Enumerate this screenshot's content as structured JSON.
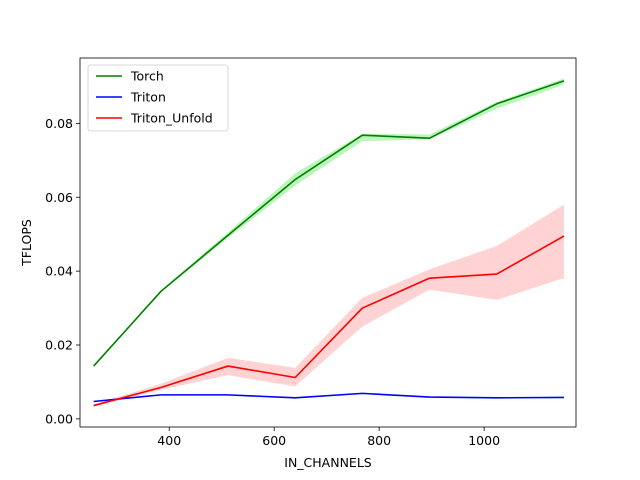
{
  "chart_data": {
    "type": "line",
    "title": "",
    "xlabel": "IN_CHANNELS",
    "ylabel": "TFLOPS",
    "xlim": [
      230,
      1175
    ],
    "ylim": [
      -0.0022,
      0.0977
    ],
    "xticks": [
      400,
      600,
      800,
      1000
    ],
    "yticks": [
      0.0,
      0.02,
      0.04,
      0.06,
      0.08
    ],
    "ytick_labels": [
      "0.00",
      "0.02",
      "0.04",
      "0.06",
      "0.08"
    ],
    "grid": false,
    "legend_position": "top-left",
    "x": [
      256,
      384,
      512,
      640,
      768,
      896,
      1024,
      1152
    ],
    "series": [
      {
        "name": "Torch",
        "color": "#008000",
        "band_color": "#90ee90",
        "values": [
          0.0143,
          0.0345,
          0.0497,
          0.0648,
          0.0768,
          0.076,
          0.0853,
          0.0915
        ],
        "lower": [
          0.014,
          0.0342,
          0.049,
          0.0632,
          0.0752,
          0.0757,
          0.084,
          0.0905
        ],
        "upper": [
          0.0146,
          0.0348,
          0.0505,
          0.0665,
          0.0772,
          0.077,
          0.0858,
          0.0922
        ]
      },
      {
        "name": "Triton",
        "color": "#0000ff",
        "band_color": "#add8e6",
        "values": [
          0.0047,
          0.0065,
          0.0065,
          0.0057,
          0.0069,
          0.0059,
          0.0057,
          0.0058
        ],
        "lower": [
          0.0046,
          0.0064,
          0.0064,
          0.0056,
          0.0068,
          0.0058,
          0.0056,
          0.0057
        ],
        "upper": [
          0.0048,
          0.0066,
          0.0066,
          0.0058,
          0.007,
          0.006,
          0.0058,
          0.0059
        ]
      },
      {
        "name": "Triton_Unfold",
        "color": "#ff0000",
        "band_color": "#ffb6b6",
        "values": [
          0.0036,
          0.0085,
          0.0143,
          0.0112,
          0.03,
          0.0381,
          0.0392,
          0.0495
        ],
        "lower": [
          0.0033,
          0.0079,
          0.0118,
          0.0088,
          0.025,
          0.035,
          0.0322,
          0.0381
        ],
        "upper": [
          0.0039,
          0.0095,
          0.0165,
          0.0138,
          0.0328,
          0.0405,
          0.0468,
          0.058
        ]
      }
    ]
  }
}
